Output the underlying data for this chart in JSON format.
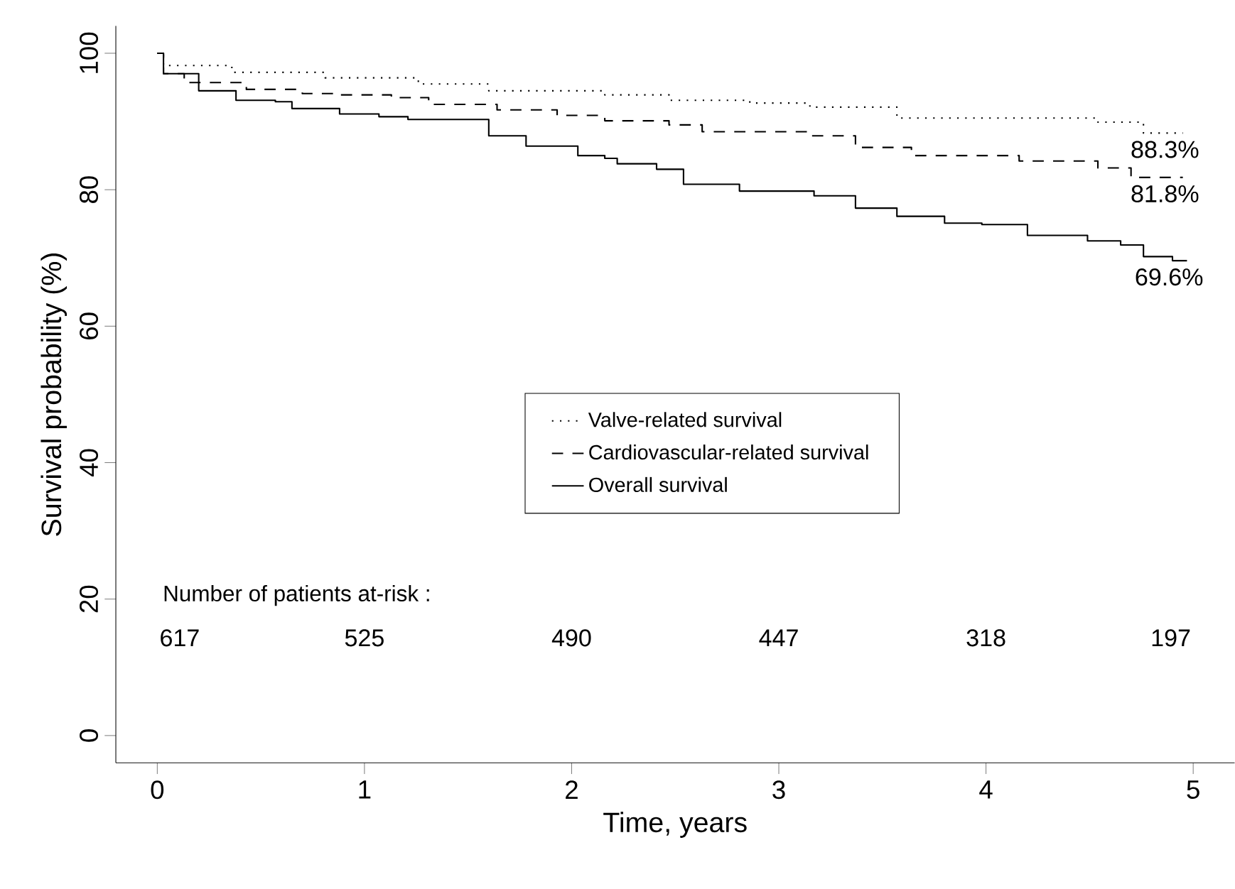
{
  "chart_data": {
    "type": "step",
    "xlabel": "Time, years",
    "ylabel": "Survival probability (%)",
    "xlim": [
      -0.2,
      5.2
    ],
    "ylim": [
      -4,
      104
    ],
    "xticks": [
      0,
      1,
      2,
      3,
      4,
      5
    ],
    "yticks": [
      0,
      20,
      40,
      60,
      80,
      100
    ],
    "grid": false,
    "legend": "center",
    "marker": "none",
    "series": [
      {
        "name": "Valve-related survival",
        "color": "#000000",
        "line_style": "dotted",
        "x": [
          0,
          0.03,
          0.36,
          0.81,
          1.26,
          1.6,
          2.16,
          2.47,
          2.86,
          3.15,
          3.57,
          4.54,
          4.76,
          4.95
        ],
        "values": [
          100,
          98.2,
          97.2,
          96.4,
          95.5,
          94.5,
          93.9,
          93.1,
          92.7,
          92.1,
          90.5,
          89.9,
          88.3,
          88.3
        ],
        "value_labels": [
          null,
          null,
          null,
          null,
          null,
          null,
          null,
          null,
          null,
          null,
          null,
          null,
          null,
          "88.3%"
        ]
      },
      {
        "name": "Cardiovascular-related survival",
        "color": "#000000",
        "line_style": "dashed",
        "x": [
          0,
          0.03,
          0.13,
          0.43,
          0.7,
          0.86,
          1.13,
          1.31,
          1.64,
          1.93,
          2.16,
          2.47,
          2.63,
          3.15,
          3.37,
          3.64,
          4.16,
          4.54,
          4.7,
          4.95
        ],
        "values": [
          100,
          97,
          95.7,
          94.7,
          94.1,
          93.9,
          93.5,
          92.5,
          91.7,
          90.9,
          90.1,
          89.5,
          88.5,
          87.9,
          86.2,
          85,
          84.2,
          83.2,
          81.8,
          81.8
        ],
        "value_labels": [
          null,
          null,
          null,
          null,
          null,
          null,
          null,
          null,
          null,
          null,
          null,
          null,
          null,
          null,
          null,
          null,
          null,
          null,
          null,
          "81.8%"
        ]
      },
      {
        "name": "Overall survival",
        "color": "#000000",
        "line_style": "solid",
        "x": [
          0,
          0.03,
          0.2,
          0.38,
          0.57,
          0.65,
          0.88,
          1.07,
          1.21,
          1.6,
          1.78,
          2.03,
          2.16,
          2.22,
          2.41,
          2.54,
          2.81,
          3.17,
          3.37,
          3.57,
          3.8,
          3.98,
          4.2,
          4.49,
          4.65,
          4.76,
          4.9,
          4.97
        ],
        "values": [
          100,
          97,
          94.5,
          93.1,
          92.9,
          91.9,
          91.1,
          90.7,
          90.3,
          87.9,
          86.4,
          85,
          84.6,
          83.8,
          83,
          80.8,
          79.8,
          79.1,
          77.3,
          76.1,
          75.1,
          74.9,
          73.3,
          72.5,
          71.9,
          70.2,
          69.6,
          69.6
        ],
        "value_labels": [
          null,
          null,
          null,
          null,
          null,
          null,
          null,
          null,
          null,
          null,
          null,
          null,
          null,
          null,
          null,
          null,
          null,
          null,
          null,
          null,
          null,
          null,
          null,
          null,
          null,
          null,
          null,
          "69.6%"
        ]
      }
    ],
    "annotations": [
      "Number of patients at-risk :",
      "617",
      "525",
      "490",
      "447",
      "318",
      "197"
    ]
  }
}
